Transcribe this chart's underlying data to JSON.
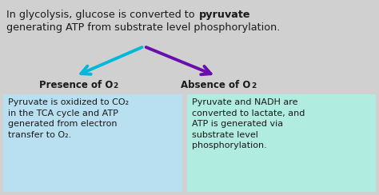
{
  "bg_color": "#d0d0d0",
  "arrow_left_color": "#00b8d8",
  "arrow_right_color": "#6a0dad",
  "label_left_bold": "Presence of O",
  "label_right_bold": "Absence of O",
  "box_left_color": "#b8e0f0",
  "box_right_color": "#b0ece0",
  "box_left_text_line1": "Pyruvate is oxidized to CO",
  "box_left_text_rest": "\nin the TCA cycle and ATP\ngenerated from electron\ntransfer to O",
  "box_right_text": "Pyruvate and NADH are\nconverted to lactate, and\nATP is generated via\nsubstrate level\nphosphorylation.",
  "text_color": "#1a1a1a",
  "label_fontsize": 8.5,
  "body_fontsize": 8.0,
  "title_fontsize": 9.2,
  "fig_width": 4.74,
  "fig_height": 2.44,
  "dpi": 100
}
